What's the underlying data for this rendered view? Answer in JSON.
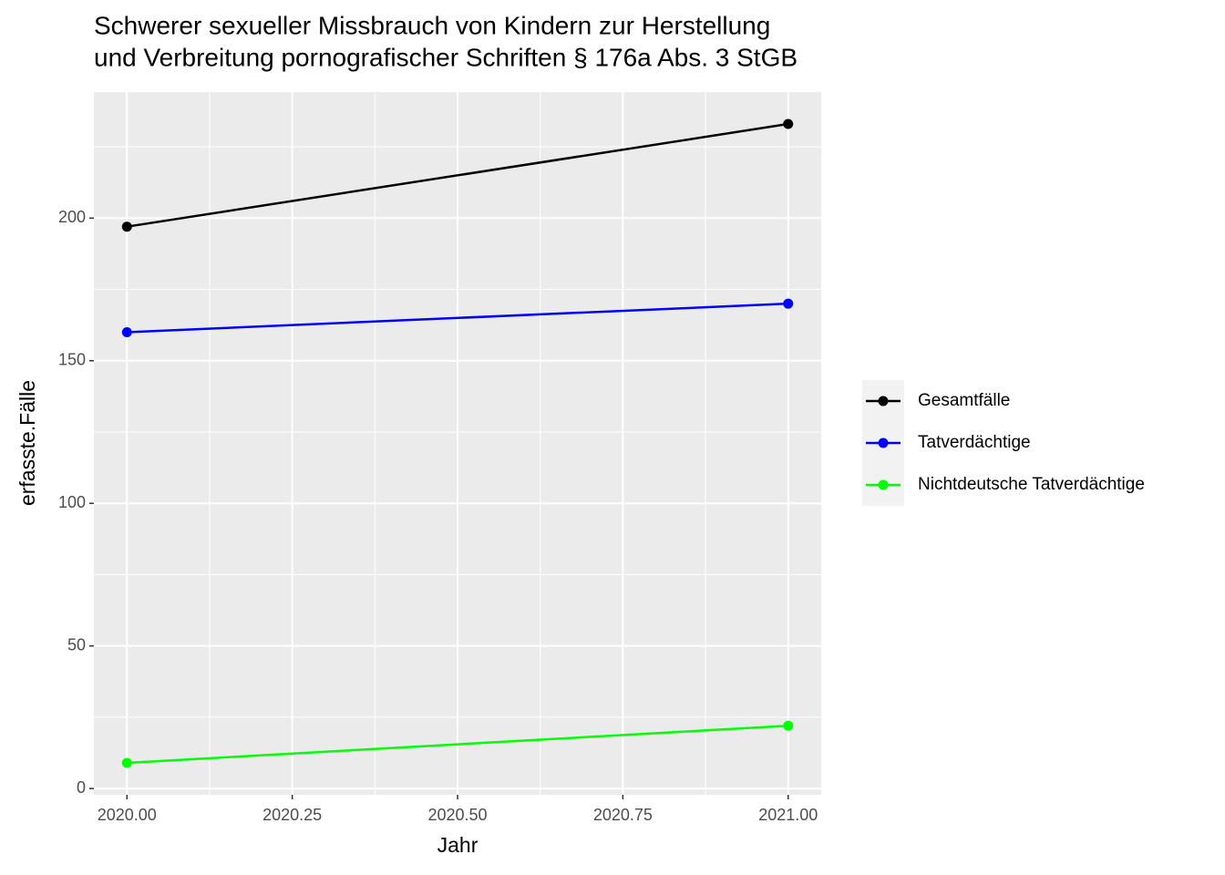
{
  "chart_data": {
    "type": "line",
    "title": [
      "Schwerer sexueller Missbrauch von Kindern zur Herstellung",
      "und Verbreitung pornografischer Schriften § 176a Abs. 3 StGB"
    ],
    "x_label": "Jahr",
    "y_label": "erfasste.Fälle",
    "x": [
      2020,
      2021
    ],
    "series": [
      {
        "name": "Gesamtfälle",
        "color": "#000000",
        "values": [
          197,
          233
        ]
      },
      {
        "name": "Tatverdächtige",
        "color": "#0000ff",
        "values": [
          160,
          170
        ]
      },
      {
        "name": "Nichtdeutsche Tatverdächtige",
        "color": "#00ff00",
        "values": [
          9,
          22
        ]
      }
    ],
    "xlim": [
      2019.95,
      2021.05
    ],
    "xticks": [
      {
        "value": 2020,
        "label": "2020.00"
      },
      {
        "value": 2020.25,
        "label": "2020.25"
      },
      {
        "value": 2020.5,
        "label": "2020.50"
      },
      {
        "value": 2020.75,
        "label": "2020.75"
      },
      {
        "value": 2021,
        "label": "2021.00"
      }
    ],
    "ylim": [
      -2.2,
      244.2
    ],
    "yticks": [
      0,
      50,
      100,
      150,
      200
    ],
    "grid": true,
    "legend": "right"
  }
}
